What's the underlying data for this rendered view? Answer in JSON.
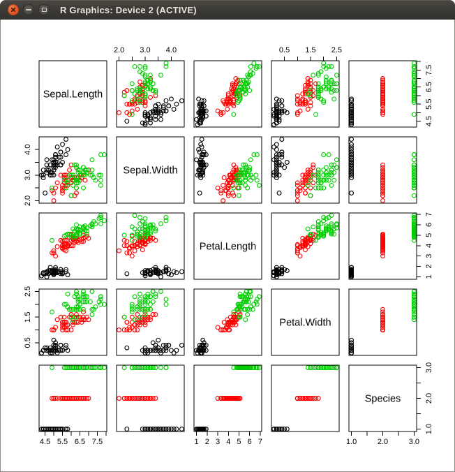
{
  "window": {
    "title": "R Graphics: Device 2 (ACTIVE)",
    "titlebar": {
      "background": "#3C3A35",
      "title_color": "#E8E4DB",
      "buttons": [
        {
          "name": "close",
          "icon": "x-cross",
          "color": "#E25B2B"
        },
        {
          "name": "minimize",
          "icon": "minus",
          "color": "#4C4A44"
        },
        {
          "name": "maximize",
          "icon": "square-outline",
          "color": "#4C4A44"
        }
      ]
    }
  },
  "chart_data": {
    "type": "scatter",
    "subtype": "pairs-matrix",
    "title": "",
    "grid": "off",
    "background": "#ffffff",
    "panel_border_color": "#000000",
    "text_color": "#000000",
    "group_colors": [
      "#000000",
      "#FF0000",
      "#00CD00"
    ],
    "point_style": {
      "shape": "open-circle",
      "radius": 2.9,
      "stroke_width": 1.1
    },
    "range_expansion": 0.04,
    "axis_sides": {
      "x_by_column": [
        "bottom",
        "top",
        "bottom",
        "top",
        "bottom"
      ],
      "y_by_row": [
        "right",
        "left",
        "right",
        "left",
        "right"
      ]
    },
    "variables": [
      {
        "name": "Sepal.Length",
        "range": [
          4.3,
          7.9
        ],
        "ticks": [
          4.5,
          5.0,
          5.5,
          6.0,
          6.5,
          7.0,
          7.5,
          8.0
        ],
        "tick_labels": [
          "4.5",
          "",
          "5.5",
          "",
          "6.5",
          "",
          "7.5",
          ""
        ]
      },
      {
        "name": "Sepal.Width",
        "range": [
          2.0,
          4.4
        ],
        "ticks": [
          2.0,
          2.5,
          3.0,
          3.5,
          4.0
        ],
        "tick_labels": [
          "2.0",
          "",
          "3.0",
          "",
          "4.0"
        ]
      },
      {
        "name": "Petal.Length",
        "range": [
          1.0,
          6.9
        ],
        "ticks": [
          1,
          2,
          3,
          4,
          5,
          6,
          7
        ],
        "tick_labels": [
          "1",
          "2",
          "3",
          "4",
          "5",
          "6",
          "7"
        ]
      },
      {
        "name": "Petal.Width",
        "range": [
          0.1,
          2.5
        ],
        "ticks": [
          0.5,
          1.0,
          1.5,
          2.0,
          2.5
        ],
        "tick_labels": [
          "0.5",
          "",
          "1.5",
          "",
          "2.5"
        ]
      },
      {
        "name": "Species",
        "range": [
          1,
          3
        ],
        "ticks": [
          1.0,
          1.5,
          2.0,
          2.5,
          3.0
        ],
        "tick_labels": [
          "1.0",
          "",
          "2.0",
          "",
          "3.0"
        ]
      }
    ],
    "observations": {
      "Sepal.Length": [
        5.1,
        4.9,
        4.7,
        4.6,
        5.0,
        5.4,
        4.6,
        5.0,
        4.4,
        4.9,
        5.4,
        4.8,
        4.8,
        4.3,
        5.8,
        5.7,
        5.4,
        5.1,
        5.7,
        5.1,
        5.4,
        5.1,
        4.6,
        5.1,
        4.8,
        5.0,
        5.0,
        5.2,
        5.2,
        4.7,
        4.8,
        5.4,
        5.2,
        5.5,
        4.9,
        5.0,
        5.5,
        4.9,
        4.4,
        5.1,
        5.0,
        4.5,
        4.4,
        5.0,
        5.1,
        4.8,
        5.1,
        4.6,
        5.3,
        5.0,
        7.0,
        6.4,
        6.9,
        5.5,
        6.5,
        5.7,
        6.3,
        4.9,
        6.6,
        5.2,
        5.0,
        5.9,
        6.0,
        6.1,
        5.6,
        6.7,
        5.6,
        5.8,
        6.2,
        5.6,
        5.9,
        6.1,
        6.3,
        6.1,
        6.4,
        6.6,
        6.8,
        6.7,
        6.0,
        5.7,
        5.5,
        5.5,
        5.8,
        6.0,
        5.4,
        6.0,
        6.7,
        6.3,
        5.6,
        5.5,
        5.5,
        6.1,
        5.8,
        5.0,
        5.6,
        5.7,
        5.7,
        6.2,
        5.1,
        5.7,
        6.3,
        5.8,
        7.1,
        6.3,
        6.5,
        7.6,
        4.9,
        7.3,
        6.7,
        7.2,
        6.5,
        6.4,
        6.8,
        5.7,
        5.8,
        6.4,
        6.5,
        7.7,
        7.7,
        6.0,
        6.9,
        5.6,
        7.7,
        6.3,
        6.7,
        7.2,
        6.2,
        6.1,
        6.4,
        7.2,
        7.4,
        7.9,
        6.4,
        6.3,
        6.1,
        7.7,
        6.3,
        6.4,
        6.0,
        6.9,
        6.7,
        6.9,
        5.8,
        6.8,
        6.7,
        6.7,
        6.3,
        6.5,
        6.2,
        5.9
      ],
      "Sepal.Width": [
        3.5,
        3.0,
        3.2,
        3.1,
        3.6,
        3.9,
        3.4,
        3.4,
        2.9,
        3.1,
        3.7,
        3.4,
        3.0,
        3.0,
        4.0,
        4.4,
        3.9,
        3.5,
        3.8,
        3.8,
        3.4,
        3.7,
        3.6,
        3.3,
        3.4,
        3.0,
        3.4,
        3.5,
        3.4,
        3.2,
        3.1,
        3.4,
        4.1,
        4.2,
        3.1,
        3.2,
        3.5,
        3.6,
        3.0,
        3.4,
        3.5,
        2.3,
        3.2,
        3.5,
        3.8,
        3.0,
        3.8,
        3.2,
        3.7,
        3.3,
        3.2,
        3.2,
        3.1,
        2.3,
        2.8,
        2.8,
        3.3,
        2.4,
        2.9,
        2.7,
        2.0,
        3.0,
        2.2,
        2.9,
        2.9,
        3.1,
        3.0,
        2.7,
        2.2,
        2.5,
        3.2,
        2.8,
        2.5,
        2.8,
        2.9,
        3.0,
        2.8,
        3.0,
        2.9,
        2.6,
        2.4,
        2.4,
        2.7,
        2.7,
        3.0,
        3.4,
        3.1,
        2.3,
        3.0,
        2.5,
        2.6,
        3.0,
        2.6,
        2.3,
        2.7,
        3.0,
        2.9,
        2.9,
        2.5,
        2.8,
        3.3,
        2.7,
        3.0,
        2.9,
        3.0,
        3.0,
        2.5,
        2.9,
        2.5,
        3.6,
        3.2,
        2.7,
        3.0,
        2.5,
        2.8,
        3.2,
        3.0,
        3.8,
        2.6,
        2.2,
        3.2,
        2.8,
        2.8,
        2.7,
        3.3,
        3.2,
        2.8,
        3.0,
        2.8,
        3.0,
        2.8,
        3.8,
        2.8,
        2.8,
        2.6,
        3.0,
        3.4,
        3.1,
        3.0,
        3.1,
        3.1,
        3.1,
        2.7,
        3.2,
        3.3,
        3.0,
        2.5,
        3.0,
        3.4,
        3.0
      ],
      "Petal.Length": [
        1.4,
        1.4,
        1.3,
        1.5,
        1.4,
        1.7,
        1.4,
        1.5,
        1.4,
        1.5,
        1.5,
        1.6,
        1.4,
        1.1,
        1.2,
        1.5,
        1.3,
        1.4,
        1.7,
        1.5,
        1.7,
        1.5,
        1.0,
        1.7,
        1.9,
        1.6,
        1.6,
        1.5,
        1.4,
        1.6,
        1.6,
        1.5,
        1.5,
        1.4,
        1.5,
        1.2,
        1.3,
        1.4,
        1.3,
        1.5,
        1.3,
        1.3,
        1.3,
        1.6,
        1.9,
        1.4,
        1.6,
        1.4,
        1.5,
        1.4,
        4.7,
        4.5,
        4.9,
        4.0,
        4.6,
        4.5,
        4.7,
        3.3,
        4.6,
        3.9,
        3.5,
        4.2,
        4.0,
        4.7,
        3.6,
        4.4,
        4.5,
        4.1,
        4.5,
        3.9,
        4.8,
        4.0,
        4.9,
        4.7,
        4.3,
        4.4,
        4.8,
        5.0,
        4.5,
        3.5,
        3.8,
        3.7,
        3.9,
        5.1,
        4.5,
        4.5,
        4.7,
        4.4,
        4.1,
        4.0,
        4.4,
        4.6,
        4.0,
        3.3,
        4.2,
        4.2,
        4.2,
        4.3,
        3.0,
        4.1,
        6.0,
        5.1,
        5.9,
        5.6,
        5.8,
        6.6,
        4.5,
        6.3,
        5.8,
        6.1,
        5.1,
        5.3,
        5.5,
        5.0,
        5.1,
        5.3,
        5.5,
        6.7,
        6.9,
        5.0,
        5.7,
        4.9,
        6.7,
        4.9,
        5.7,
        6.0,
        4.8,
        4.9,
        5.6,
        5.8,
        6.1,
        6.4,
        5.6,
        5.1,
        5.6,
        6.1,
        5.6,
        5.5,
        4.8,
        5.4,
        5.6,
        5.1,
        5.1,
        5.9,
        5.7,
        5.2,
        5.0,
        5.2,
        5.4,
        5.1
      ],
      "Petal.Width": [
        0.2,
        0.2,
        0.2,
        0.2,
        0.2,
        0.4,
        0.3,
        0.2,
        0.2,
        0.1,
        0.2,
        0.2,
        0.1,
        0.1,
        0.2,
        0.4,
        0.4,
        0.3,
        0.3,
        0.3,
        0.2,
        0.4,
        0.2,
        0.5,
        0.2,
        0.2,
        0.4,
        0.2,
        0.2,
        0.2,
        0.2,
        0.4,
        0.1,
        0.2,
        0.2,
        0.2,
        0.2,
        0.1,
        0.2,
        0.2,
        0.3,
        0.3,
        0.2,
        0.6,
        0.4,
        0.3,
        0.2,
        0.2,
        0.2,
        0.2,
        1.4,
        1.5,
        1.5,
        1.3,
        1.5,
        1.3,
        1.6,
        1.0,
        1.3,
        1.4,
        1.0,
        1.5,
        1.0,
        1.4,
        1.3,
        1.4,
        1.5,
        1.0,
        1.5,
        1.1,
        1.8,
        1.3,
        1.5,
        1.2,
        1.3,
        1.4,
        1.4,
        1.7,
        1.5,
        1.0,
        1.1,
        1.0,
        1.2,
        1.6,
        1.5,
        1.6,
        1.5,
        1.3,
        1.3,
        1.3,
        1.2,
        1.4,
        1.2,
        1.0,
        1.3,
        1.2,
        1.3,
        1.3,
        1.1,
        1.3,
        2.5,
        1.9,
        2.1,
        1.8,
        2.2,
        2.1,
        1.7,
        1.8,
        1.8,
        2.5,
        2.0,
        1.9,
        2.1,
        2.0,
        2.4,
        2.3,
        1.8,
        2.2,
        2.3,
        1.5,
        2.3,
        2.0,
        2.0,
        1.8,
        2.1,
        1.8,
        1.8,
        1.8,
        2.1,
        1.6,
        1.9,
        2.0,
        2.2,
        1.5,
        1.4,
        2.3,
        2.4,
        1.8,
        1.8,
        2.1,
        2.4,
        2.3,
        1.9,
        2.3,
        2.5,
        2.3,
        1.9,
        2.0,
        2.3,
        1.8
      ],
      "Species": [
        1,
        1,
        1,
        1,
        1,
        1,
        1,
        1,
        1,
        1,
        1,
        1,
        1,
        1,
        1,
        1,
        1,
        1,
        1,
        1,
        1,
        1,
        1,
        1,
        1,
        1,
        1,
        1,
        1,
        1,
        1,
        1,
        1,
        1,
        1,
        1,
        1,
        1,
        1,
        1,
        1,
        1,
        1,
        1,
        1,
        1,
        1,
        1,
        1,
        1,
        2,
        2,
        2,
        2,
        2,
        2,
        2,
        2,
        2,
        2,
        2,
        2,
        2,
        2,
        2,
        2,
        2,
        2,
        2,
        2,
        2,
        2,
        2,
        2,
        2,
        2,
        2,
        2,
        2,
        2,
        2,
        2,
        2,
        2,
        2,
        2,
        2,
        2,
        2,
        2,
        2,
        2,
        2,
        2,
        2,
        2,
        2,
        2,
        2,
        2,
        3,
        3,
        3,
        3,
        3,
        3,
        3,
        3,
        3,
        3,
        3,
        3,
        3,
        3,
        3,
        3,
        3,
        3,
        3,
        3,
        3,
        3,
        3,
        3,
        3,
        3,
        3,
        3,
        3,
        3,
        3,
        3,
        3,
        3,
        3,
        3,
        3,
        3,
        3,
        3,
        3,
        3,
        3,
        3,
        3,
        3,
        3,
        3,
        3,
        3
      ]
    }
  }
}
